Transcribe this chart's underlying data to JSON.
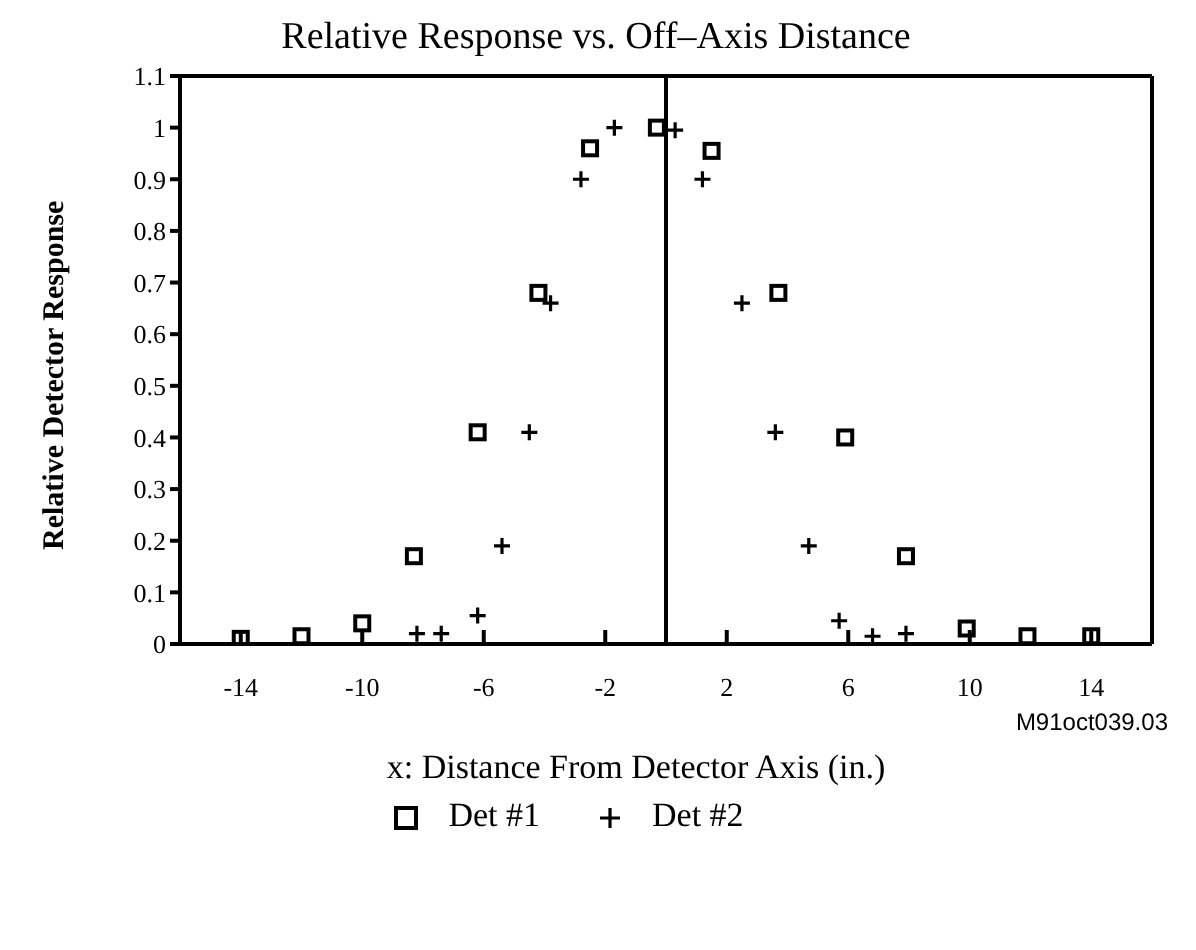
{
  "chart_data": {
    "type": "scatter",
    "title": "Relative Response vs. Off–Axis Distance",
    "xlabel": "x:  Distance From Detector Axis (in.)",
    "ylabel": "Relative Detector Response",
    "annotations": [
      "M91oct039.03"
    ],
    "xlim": [
      -16,
      16
    ],
    "xticks": [
      -14,
      -10,
      -6,
      -2,
      2,
      6,
      10,
      14
    ],
    "ylim": [
      0,
      1.1
    ],
    "yticks": [
      0,
      0.1,
      0.2,
      0.3,
      0.4,
      0.5,
      0.6,
      0.7,
      0.8,
      0.9,
      1,
      1.1
    ],
    "grid": false,
    "legend": "bottom",
    "ref_lines": [
      {
        "axis": "x",
        "value": 0,
        "color": "#000000"
      }
    ],
    "series": [
      {
        "name": "Det #1",
        "color": "#000000",
        "marker": "square",
        "x": [
          -14,
          -12,
          -10,
          -8.3,
          -6.2,
          -4.2,
          -2.5,
          -0.3,
          1.5,
          3.7,
          5.9,
          7.9,
          9.9,
          11.9,
          14
        ],
        "values": [
          0.01,
          0.015,
          0.04,
          0.17,
          0.41,
          0.68,
          0.96,
          1.0,
          0.955,
          0.68,
          0.4,
          0.17,
          0.03,
          0.015,
          0.015
        ]
      },
      {
        "name": "Det #2",
        "color": "#000000",
        "marker": "cross",
        "x": [
          -8.2,
          -7.4,
          -6.2,
          -5.4,
          -4.5,
          -3.8,
          -2.8,
          -1.7,
          0.3,
          1.2,
          2.5,
          3.6,
          4.7,
          5.7,
          6.8,
          7.9
        ],
        "values": [
          0.02,
          0.02,
          0.055,
          0.19,
          0.41,
          0.66,
          0.9,
          1.0,
          0.995,
          0.9,
          0.66,
          0.41,
          0.19,
          0.045,
          0.015,
          0.02
        ]
      }
    ]
  }
}
